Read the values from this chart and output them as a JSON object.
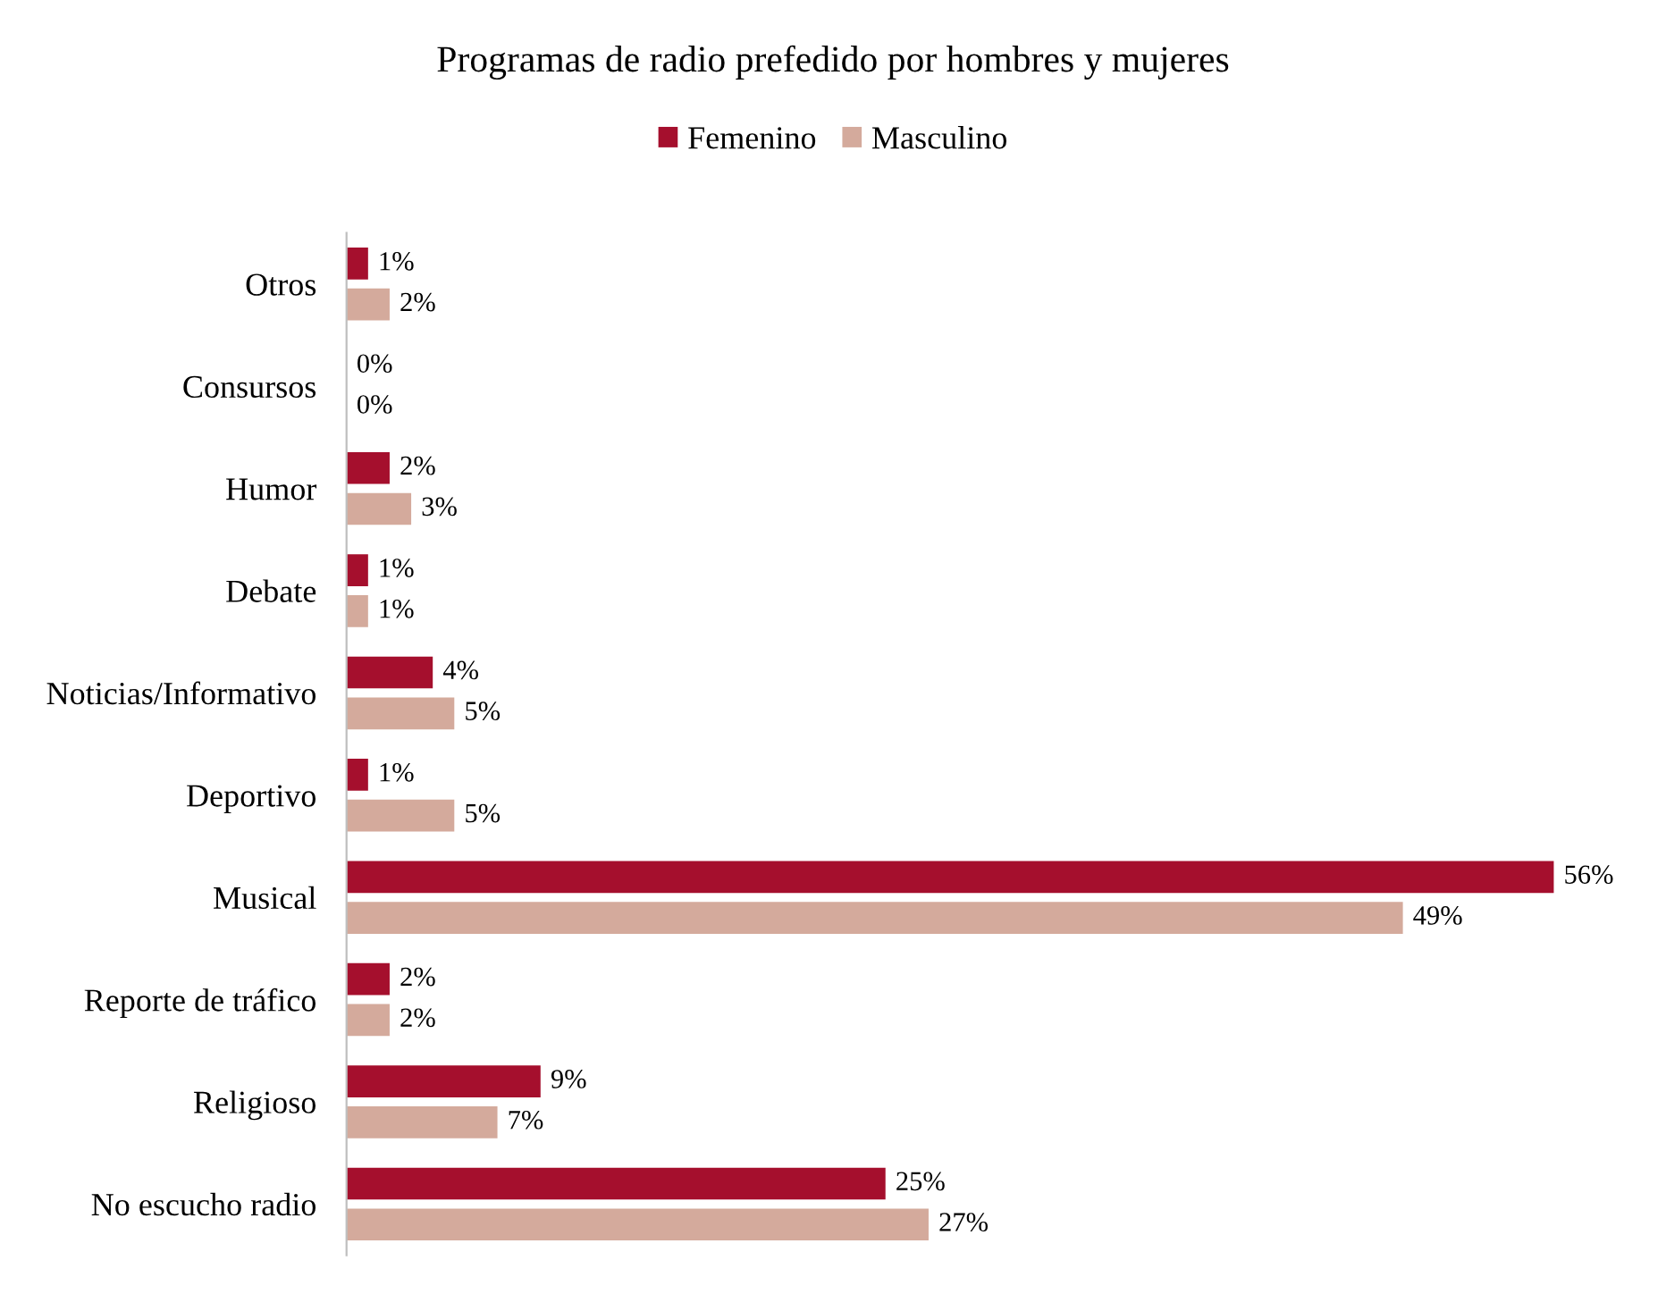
{
  "chart_data": {
    "type": "bar",
    "orientation": "horizontal",
    "title": "Programas de radio prefedido por hombres y mujeres",
    "categories": [
      "Otros",
      "Consursos",
      "Humor",
      "Debate",
      "Noticias/Informativo",
      "Deportivo",
      "Musical",
      "Reporte de tráfico",
      "Religioso",
      "No escucho radio"
    ],
    "series": [
      {
        "name": "Femenino",
        "color": "#a50f2d",
        "values": [
          1,
          0,
          2,
          1,
          4,
          1,
          56,
          2,
          9,
          25
        ],
        "value_labels": [
          "1%",
          "0%",
          "2%",
          "1%",
          "4%",
          "1%",
          "56%",
          "2%",
          "9%",
          "25%"
        ]
      },
      {
        "name": "Masculino",
        "color": "#d4aa9c",
        "values": [
          2,
          0,
          3,
          1,
          5,
          5,
          49,
          2,
          7,
          27
        ],
        "value_labels": [
          "2%",
          "0%",
          "3%",
          "1%",
          "5%",
          "5%",
          "49%",
          "2%",
          "7%",
          "27%"
        ]
      }
    ],
    "legend": "top",
    "grid": false
  }
}
